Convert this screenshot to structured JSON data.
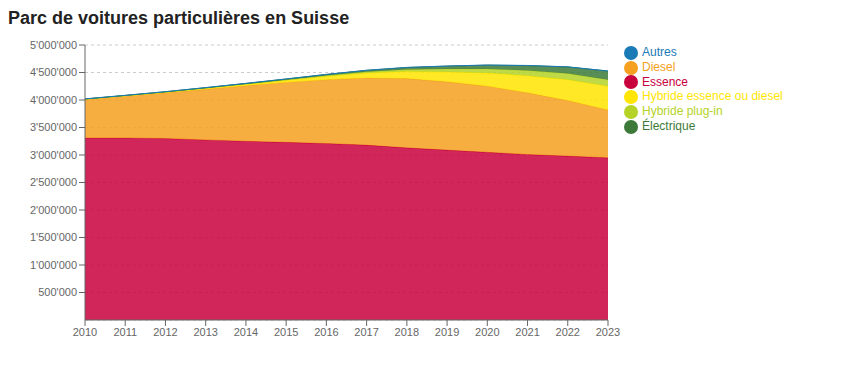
{
  "chart_data": {
    "type": "area",
    "title": "Parc de voitures particulières en Suisse",
    "stacked": true,
    "grid": true,
    "legend": "right",
    "x": [
      2010,
      2011,
      2012,
      2013,
      2014,
      2015,
      2016,
      2017,
      2018,
      2019,
      2020,
      2021,
      2022,
      2023
    ],
    "xlim": [
      2010,
      2023
    ],
    "xticks": [
      2010,
      2011,
      2012,
      2013,
      2014,
      2015,
      2016,
      2017,
      2018,
      2019,
      2020,
      2021,
      2022,
      2023
    ],
    "ylim": [
      0,
      5000000
    ],
    "yticks": [
      {
        "value": 500000,
        "label": "500'000"
      },
      {
        "value": 1000000,
        "label": "1'000'000"
      },
      {
        "value": 1500000,
        "label": "1'500'000"
      },
      {
        "value": 2000000,
        "label": "2'000'000"
      },
      {
        "value": 2500000,
        "label": "2'500'000"
      },
      {
        "value": 3000000,
        "label": "3'000'000"
      },
      {
        "value": 3500000,
        "label": "3'500'000"
      },
      {
        "value": 4000000,
        "label": "4'000'000"
      },
      {
        "value": 4500000,
        "label": "4'500'000"
      },
      {
        "value": 5000000,
        "label": "5'000'000"
      }
    ],
    "series": [
      {
        "name": "Essence",
        "color": "#C8003C",
        "values": [
          3310000,
          3310000,
          3300000,
          3275000,
          3250000,
          3230000,
          3210000,
          3180000,
          3130000,
          3090000,
          3050000,
          3010000,
          2980000,
          2950000
        ]
      },
      {
        "name": "Diesel",
        "color": "#F5A020",
        "values": [
          700000,
          760000,
          830000,
          920000,
          1010000,
          1090000,
          1160000,
          1220000,
          1260000,
          1240000,
          1200000,
          1120000,
          1010000,
          870000
        ]
      },
      {
        "name": "Hybride essence ou diesel",
        "color": "#FFE500",
        "values": [
          5000,
          8000,
          12000,
          18000,
          25000,
          38000,
          60000,
          90000,
          130000,
          180000,
          240000,
          310000,
          380000,
          430000
        ]
      },
      {
        "name": "Hybride plug-in",
        "color": "#B5D327",
        "values": [
          1000,
          1500,
          2000,
          3000,
          5000,
          8000,
          14000,
          22000,
          35000,
          55000,
          75000,
          95000,
          110000,
          120000
        ]
      },
      {
        "name": "Électrique",
        "color": "#3D7A3A",
        "values": [
          2000,
          3000,
          5000,
          7000,
          10000,
          14000,
          19000,
          26000,
          35000,
          50000,
          68000,
          90000,
          120000,
          155000
        ]
      },
      {
        "name": "Autres",
        "color": "#1A7AB5",
        "values": [
          3000,
          3000,
          3000,
          3000,
          3000,
          3000,
          3000,
          3000,
          3000,
          3000,
          3000,
          3000,
          3000,
          3000
        ]
      }
    ]
  }
}
